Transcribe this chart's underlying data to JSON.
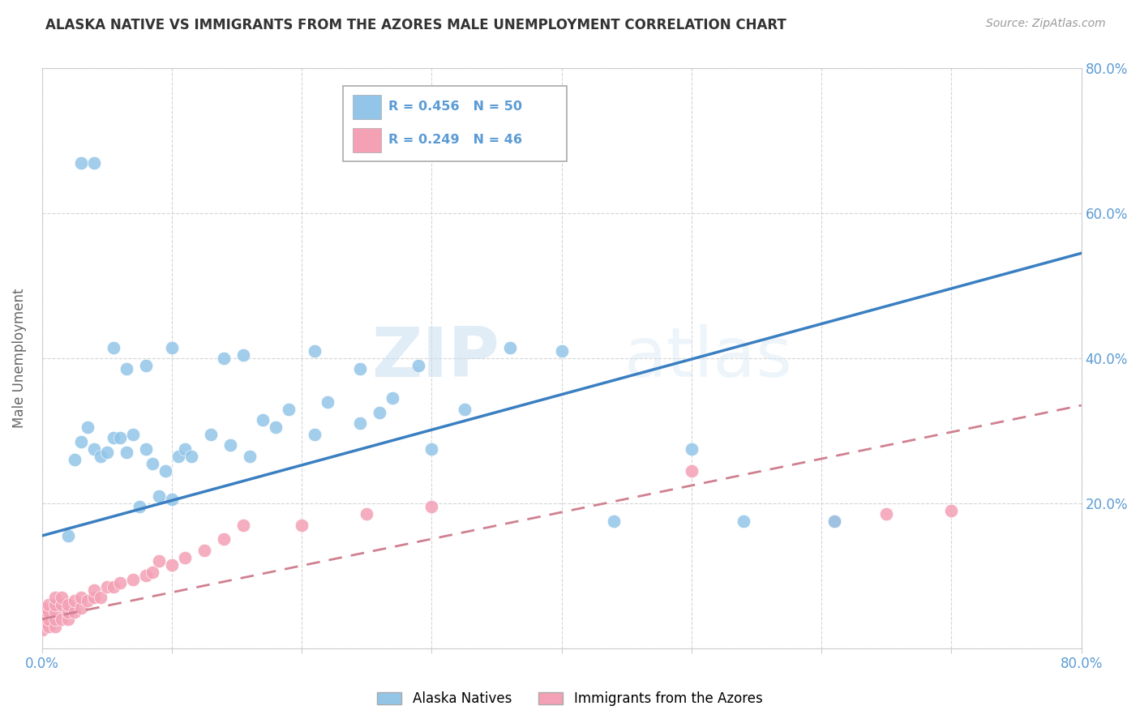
{
  "title": "ALASKA NATIVE VS IMMIGRANTS FROM THE AZORES MALE UNEMPLOYMENT CORRELATION CHART",
  "source": "Source: ZipAtlas.com",
  "ylabel": "Male Unemployment",
  "xlim": [
    0.0,
    0.8
  ],
  "ylim": [
    0.0,
    0.8
  ],
  "alaska_color": "#92C5E8",
  "azores_color": "#F4A0B5",
  "alaska_line_color": "#3A7FC1",
  "azores_line_color": "#D08090",
  "alaska_r": 0.456,
  "alaska_n": 50,
  "azores_r": 0.249,
  "azores_n": 46,
  "alaska_scatter_x": [
    0.02,
    0.025,
    0.03,
    0.035,
    0.04,
    0.045,
    0.05,
    0.055,
    0.06,
    0.065,
    0.07,
    0.075,
    0.08,
    0.085,
    0.09,
    0.095,
    0.1,
    0.105,
    0.11,
    0.115,
    0.13,
    0.145,
    0.16,
    0.17,
    0.18,
    0.19,
    0.21,
    0.22,
    0.245,
    0.26,
    0.27,
    0.29,
    0.3,
    0.325,
    0.36,
    0.4,
    0.44,
    0.5,
    0.54,
    0.61,
    0.03,
    0.04,
    0.055,
    0.065,
    0.08,
    0.1,
    0.14,
    0.155,
    0.21,
    0.245
  ],
  "alaska_scatter_y": [
    0.155,
    0.26,
    0.285,
    0.305,
    0.275,
    0.265,
    0.27,
    0.29,
    0.29,
    0.27,
    0.295,
    0.195,
    0.275,
    0.255,
    0.21,
    0.245,
    0.205,
    0.265,
    0.275,
    0.265,
    0.295,
    0.28,
    0.265,
    0.315,
    0.305,
    0.33,
    0.295,
    0.34,
    0.31,
    0.325,
    0.345,
    0.39,
    0.275,
    0.33,
    0.415,
    0.41,
    0.175,
    0.275,
    0.175,
    0.175,
    0.67,
    0.67,
    0.415,
    0.385,
    0.39,
    0.415,
    0.4,
    0.405,
    0.41,
    0.385
  ],
  "azores_scatter_x": [
    0.0,
    0.0,
    0.0,
    0.0,
    0.005,
    0.005,
    0.005,
    0.005,
    0.01,
    0.01,
    0.01,
    0.01,
    0.01,
    0.015,
    0.015,
    0.015,
    0.02,
    0.02,
    0.02,
    0.025,
    0.025,
    0.03,
    0.03,
    0.035,
    0.04,
    0.04,
    0.045,
    0.05,
    0.055,
    0.06,
    0.07,
    0.08,
    0.085,
    0.09,
    0.1,
    0.11,
    0.125,
    0.14,
    0.155,
    0.2,
    0.25,
    0.3,
    0.5,
    0.61,
    0.65,
    0.7
  ],
  "azores_scatter_y": [
    0.025,
    0.035,
    0.045,
    0.055,
    0.03,
    0.04,
    0.05,
    0.06,
    0.03,
    0.04,
    0.05,
    0.06,
    0.07,
    0.04,
    0.06,
    0.07,
    0.04,
    0.05,
    0.06,
    0.05,
    0.065,
    0.055,
    0.07,
    0.065,
    0.07,
    0.08,
    0.07,
    0.085,
    0.085,
    0.09,
    0.095,
    0.1,
    0.105,
    0.12,
    0.115,
    0.125,
    0.135,
    0.15,
    0.17,
    0.17,
    0.185,
    0.195,
    0.245,
    0.175,
    0.185,
    0.19
  ],
  "alaska_trend_x": [
    0.0,
    0.8
  ],
  "alaska_trend_y": [
    0.155,
    0.545
  ],
  "azores_trend_x": [
    0.0,
    0.8
  ],
  "azores_trend_y": [
    0.04,
    0.335
  ],
  "watermark_zip": "ZIP",
  "watermark_atlas": "atlas",
  "legend_label_alaska": "Alaska Natives",
  "legend_label_azores": "Immigrants from the Azores"
}
